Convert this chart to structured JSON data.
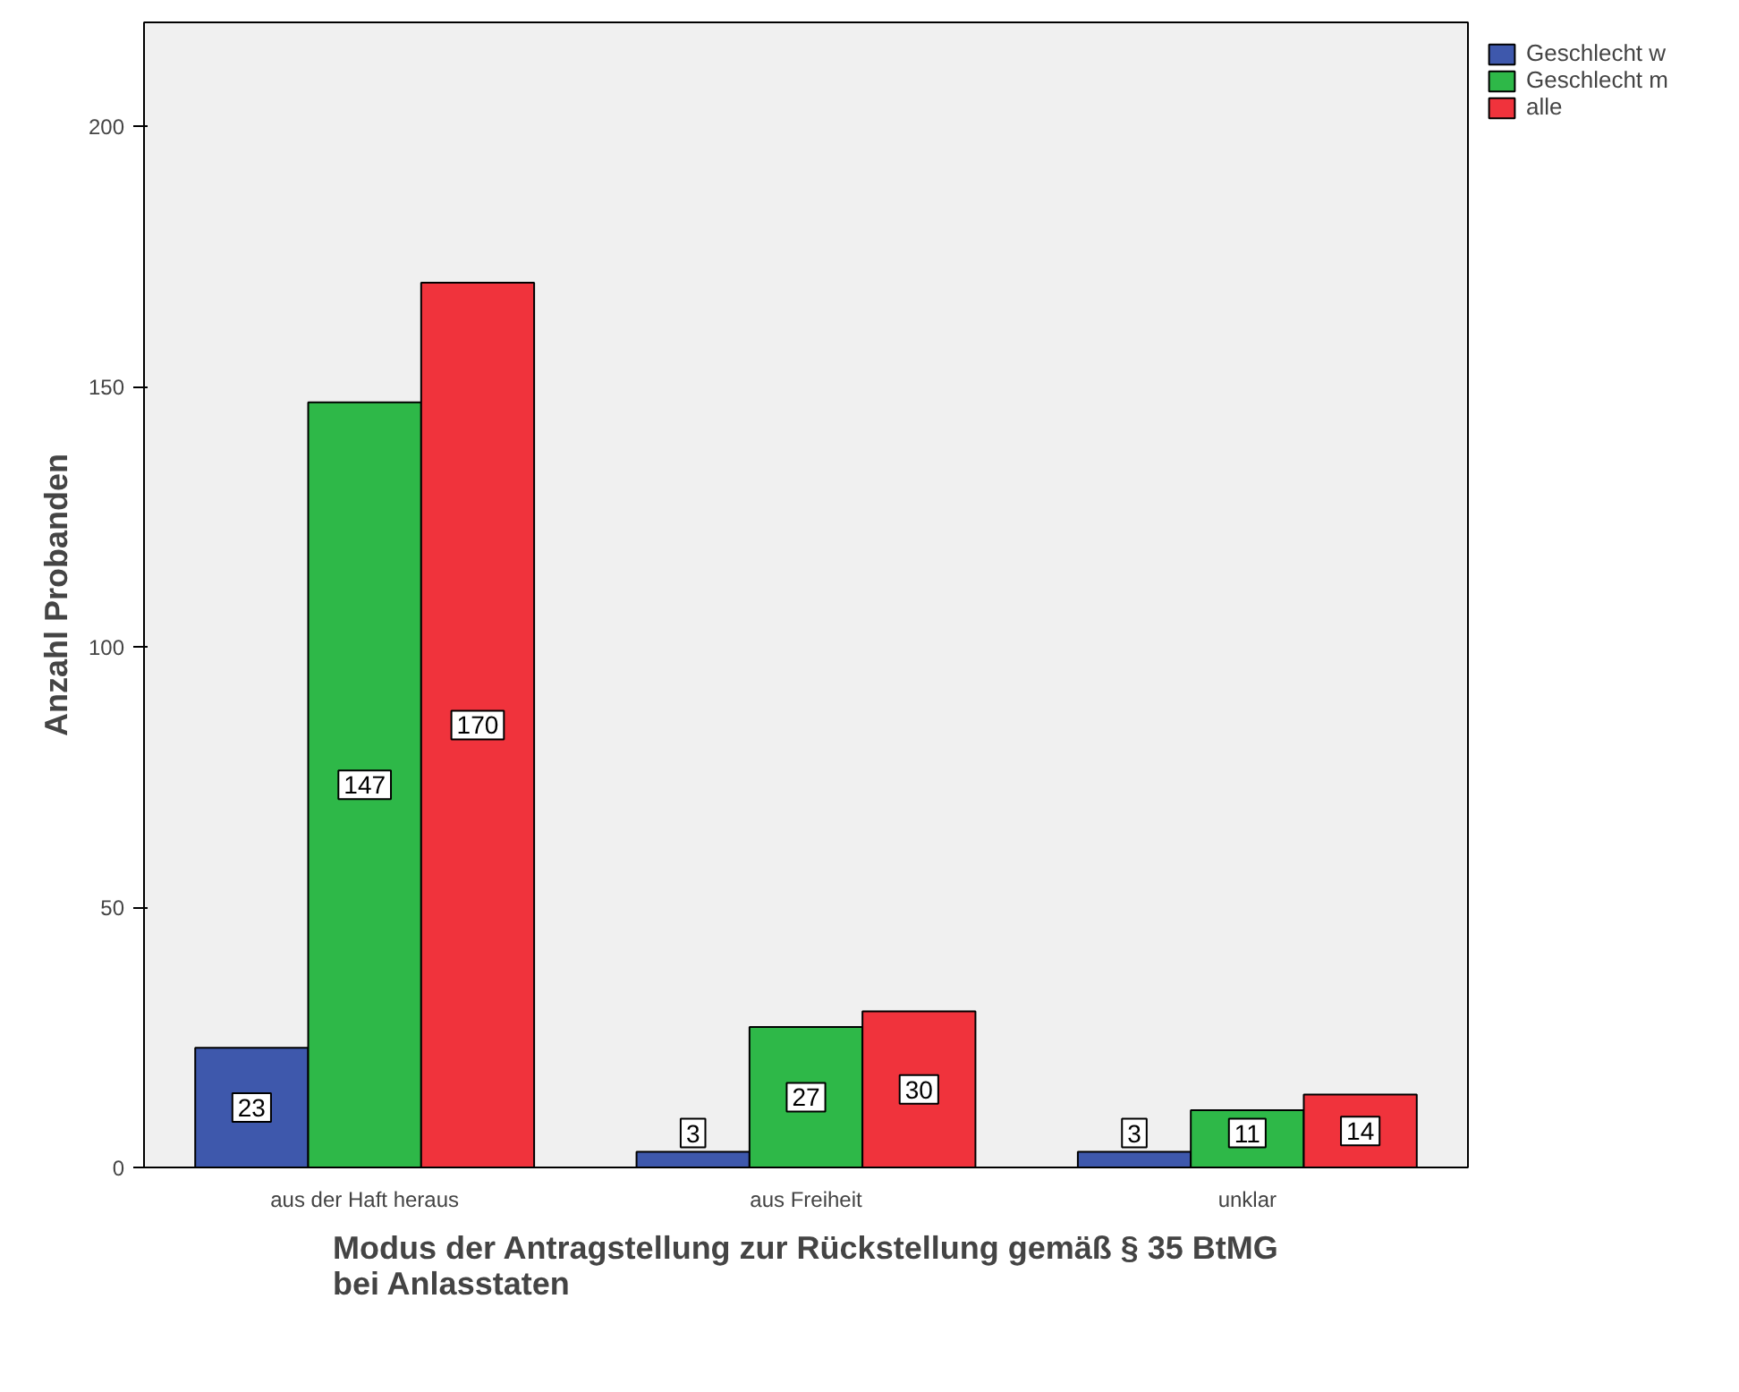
{
  "chart_data": {
    "type": "bar",
    "xlabel": "Modus der Antragstellung zur Rückstellung gemäß § 35 BtMG\nbei Anlasstaten",
    "ylabel": "Anzahl Probanden",
    "categories": [
      "aus der Haft heraus",
      "aus Freiheit",
      "unklar"
    ],
    "series": [
      {
        "name": "Geschlecht w",
        "color": "#3e58ac",
        "values": [
          23,
          3,
          3
        ]
      },
      {
        "name": "Geschlecht m",
        "color": "#2eb848",
        "values": [
          147,
          27,
          11
        ]
      },
      {
        "name": "alle",
        "color": "#f0333c",
        "values": [
          170,
          30,
          14
        ]
      }
    ],
    "ylim": [
      0,
      220
    ],
    "yticks": [
      0,
      50,
      100,
      150,
      200
    ],
    "grid": false,
    "legend": "top right",
    "data_labels": true
  }
}
